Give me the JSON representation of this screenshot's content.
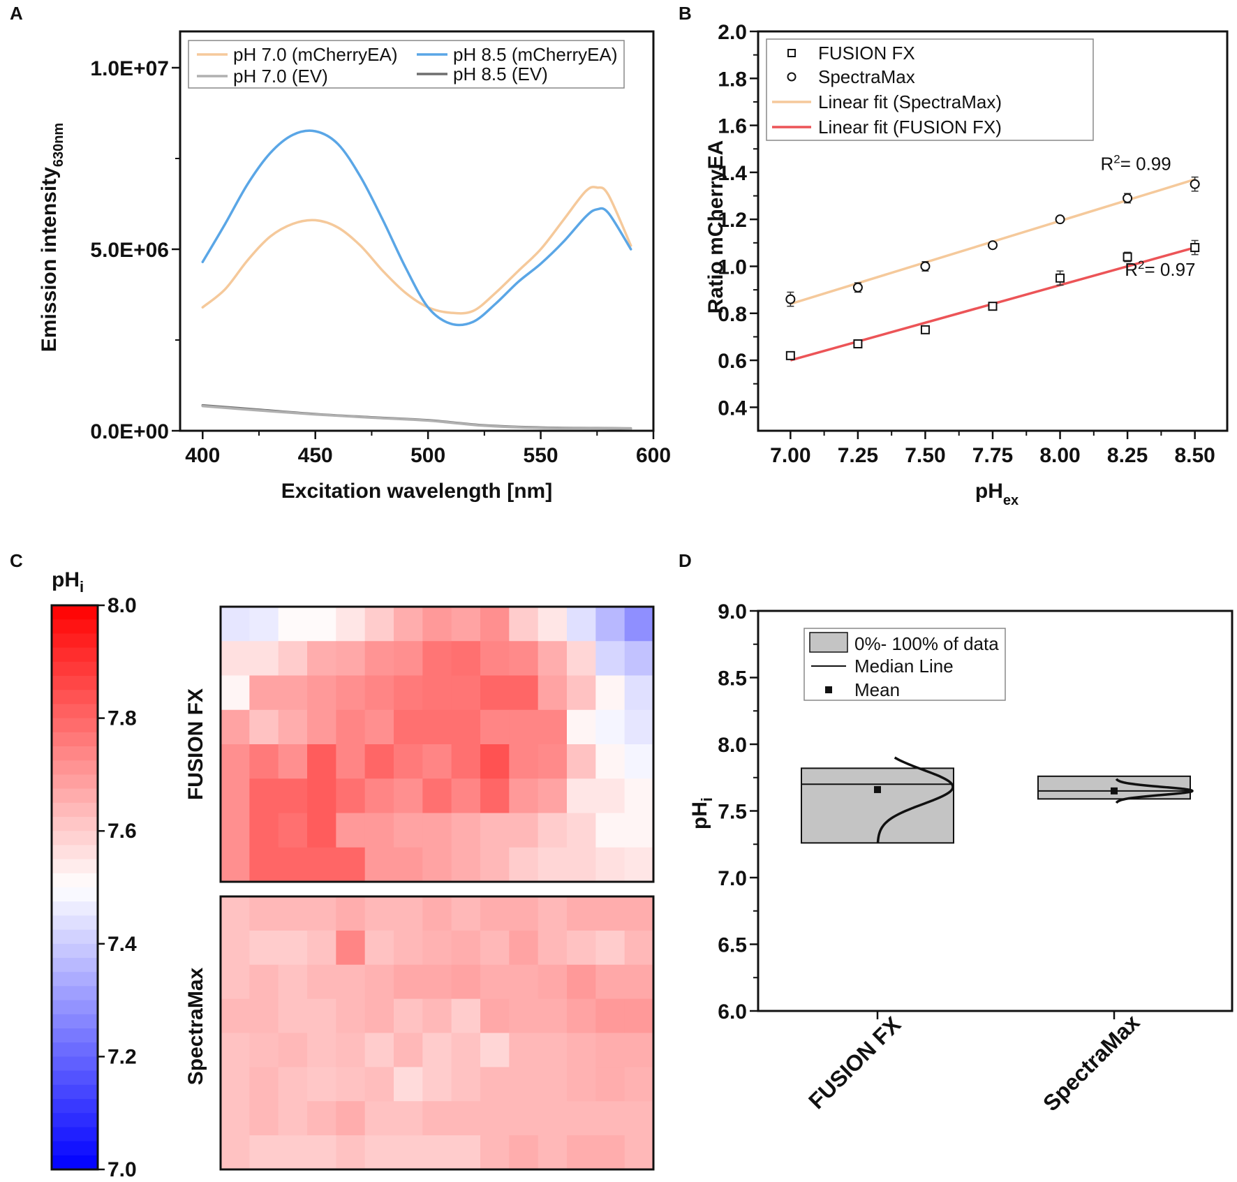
{
  "panel_labels": [
    "A",
    "B",
    "C",
    "D"
  ],
  "chart_data": [
    {
      "panel": "A",
      "type": "line",
      "xlabel": "Excitation wavelength [nm]",
      "ylabel_main": "Emission intensity",
      "ylabel_sub": "630nm",
      "xlim": [
        390,
        600
      ],
      "ylim": [
        0,
        11000000
      ],
      "xticks": [
        400,
        450,
        500,
        550,
        600
      ],
      "yticks": [
        0,
        5000000,
        10000000
      ],
      "ytick_labels": [
        "0.0E+00",
        "5.0E+06",
        "1.0E+07"
      ],
      "legend_position": "top-left",
      "series": [
        {
          "name": "pH 7.0 (mCherryEA)",
          "color": "#f5c99b",
          "x": [
            400,
            410,
            420,
            430,
            440,
            450,
            460,
            470,
            480,
            490,
            500,
            510,
            520,
            530,
            540,
            550,
            560,
            570,
            575,
            580,
            590
          ],
          "y": [
            3400000,
            3900000,
            4700000,
            5350000,
            5700000,
            5800000,
            5600000,
            5100000,
            4400000,
            3800000,
            3400000,
            3250000,
            3300000,
            3800000,
            4400000,
            5000000,
            5800000,
            6600000,
            6700000,
            6500000,
            5100000
          ]
        },
        {
          "name": "pH 8.5 (mCherryEA)",
          "color": "#5aa6e6",
          "x": [
            400,
            410,
            420,
            430,
            440,
            450,
            460,
            470,
            480,
            490,
            500,
            510,
            520,
            530,
            540,
            550,
            560,
            570,
            575,
            580,
            590
          ],
          "y": [
            4650000,
            5700000,
            6800000,
            7650000,
            8150000,
            8250000,
            7900000,
            7000000,
            5800000,
            4500000,
            3400000,
            2950000,
            3000000,
            3500000,
            4100000,
            4600000,
            5200000,
            5900000,
            6100000,
            6000000,
            5000000
          ]
        },
        {
          "name": "pH 7.0 (EV)",
          "color": "#b0b0b0",
          "x": [
            400,
            425,
            450,
            475,
            500,
            525,
            550,
            575,
            590
          ],
          "y": [
            680000,
            560000,
            450000,
            360000,
            280000,
            140000,
            80000,
            70000,
            60000
          ]
        },
        {
          "name": "pH 8.5 (EV)",
          "color": "#6e6e6e",
          "x": [
            400,
            425,
            450,
            475,
            500,
            525,
            550,
            575,
            590
          ],
          "y": [
            700000,
            580000,
            460000,
            370000,
            290000,
            150000,
            90000,
            75000,
            65000
          ]
        }
      ]
    },
    {
      "panel": "B",
      "type": "scatter",
      "xlabel_main": "pH",
      "xlabel_sub": "ex",
      "ylabel": "Ratio mCherryEA",
      "xlim": [
        6.88,
        8.62
      ],
      "ylim": [
        0.3,
        2.0
      ],
      "xticks": [
        7.0,
        7.25,
        7.5,
        7.75,
        8.0,
        8.25,
        8.5
      ],
      "xtick_labels": [
        "7.00",
        "7.25",
        "7.50",
        "7.75",
        "8.00",
        "8.25",
        "8.50"
      ],
      "yticks": [
        0.4,
        0.6,
        0.8,
        1.0,
        1.2,
        1.4,
        1.6,
        1.8,
        2.0
      ],
      "ytick_labels": [
        "0.4",
        "0.6",
        "0.8",
        "1.0",
        "1.2",
        "1.4",
        "1.6",
        "1.8",
        "2.0"
      ],
      "legend_position": "top-left",
      "series": [
        {
          "name": "FUSION FX",
          "marker": "square",
          "x": [
            7.0,
            7.25,
            7.5,
            7.75,
            8.0,
            8.25,
            8.5
          ],
          "y": [
            0.62,
            0.67,
            0.73,
            0.83,
            0.95,
            1.04,
            1.08
          ],
          "err": [
            0.01,
            0.01,
            0.01,
            0.01,
            0.03,
            0.02,
            0.03
          ]
        },
        {
          "name": "SpectraMax",
          "marker": "circle",
          "x": [
            7.0,
            7.25,
            7.5,
            7.75,
            8.0,
            8.25,
            8.5
          ],
          "y": [
            0.86,
            0.91,
            1.0,
            1.09,
            1.2,
            1.29,
            1.35
          ],
          "err": [
            0.03,
            0.02,
            0.02,
            0.01,
            0.01,
            0.02,
            0.03
          ]
        },
        {
          "name": "Linear fit (SpectraMax)",
          "type": "fit",
          "color": "#f5c99b",
          "x": [
            7.0,
            8.5
          ],
          "y": [
            0.84,
            1.37
          ]
        },
        {
          "name": "Linear fit (FUSION FX)",
          "type": "fit",
          "color": "#ec5457",
          "x": [
            7.0,
            8.5
          ],
          "y": [
            0.6,
            1.08
          ]
        }
      ],
      "annotations": [
        {
          "text": "R",
          "sup": "2",
          "rest": "= 0.99",
          "x": 8.15,
          "y": 1.41
        },
        {
          "text": "R",
          "sup": "2",
          "rest": "= 0.97",
          "x": 8.24,
          "y": 0.96
        }
      ]
    },
    {
      "panel": "C",
      "type": "heatmap",
      "colorbar_title_main": "pH",
      "colorbar_title_sub": "i",
      "colorbar_range": [
        7.0,
        8.0
      ],
      "colorbar_ticks": [
        7.0,
        7.2,
        7.4,
        7.6,
        7.8,
        8.0
      ],
      "colorbar_tick_labels": [
        "7.0",
        "7.2",
        "7.4",
        "7.6",
        "7.8",
        "8.0"
      ],
      "plates": [
        {
          "name": "FUSION FX",
          "rows": [
            [
              7.45,
              7.46,
              7.51,
              7.51,
              7.55,
              7.6,
              7.66,
              7.7,
              7.68,
              7.72,
              7.6,
              7.55,
              7.44,
              7.36,
              7.28
            ],
            [
              7.56,
              7.56,
              7.6,
              7.66,
              7.67,
              7.71,
              7.72,
              7.77,
              7.78,
              7.74,
              7.73,
              7.66,
              7.58,
              7.42,
              7.38
            ],
            [
              7.52,
              7.68,
              7.68,
              7.7,
              7.72,
              7.74,
              7.76,
              7.77,
              7.77,
              7.8,
              7.8,
              7.68,
              7.62,
              7.52,
              7.44
            ],
            [
              7.68,
              7.62,
              7.66,
              7.7,
              7.74,
              7.72,
              7.78,
              7.78,
              7.78,
              7.74,
              7.74,
              7.74,
              7.52,
              7.48,
              7.45
            ],
            [
              7.72,
              7.76,
              7.72,
              7.82,
              7.74,
              7.8,
              7.76,
              7.74,
              7.78,
              7.84,
              7.74,
              7.73,
              7.62,
              7.52,
              7.48
            ],
            [
              7.72,
              7.8,
              7.8,
              7.82,
              7.78,
              7.74,
              7.72,
              7.78,
              7.74,
              7.8,
              7.7,
              7.68,
              7.55,
              7.55,
              7.52
            ],
            [
              7.72,
              7.8,
              7.78,
              7.82,
              7.7,
              7.7,
              7.68,
              7.68,
              7.66,
              7.64,
              7.64,
              7.6,
              7.58,
              7.52,
              7.52
            ],
            [
              7.72,
              7.8,
              7.8,
              7.8,
              7.8,
              7.7,
              7.7,
              7.68,
              7.66,
              7.64,
              7.6,
              7.58,
              7.58,
              7.56,
              7.55
            ]
          ]
        },
        {
          "name": "SpectraMax",
          "rows": [
            [
              7.62,
              7.64,
              7.64,
              7.64,
              7.66,
              7.64,
              7.64,
              7.66,
              7.64,
              7.66,
              7.66,
              7.64,
              7.66,
              7.66,
              7.66
            ],
            [
              7.62,
              7.6,
              7.6,
              7.62,
              7.74,
              7.62,
              7.64,
              7.65,
              7.66,
              7.64,
              7.68,
              7.64,
              7.62,
              7.6,
              7.64
            ],
            [
              7.62,
              7.64,
              7.62,
              7.64,
              7.64,
              7.65,
              7.67,
              7.67,
              7.68,
              7.66,
              7.66,
              7.67,
              7.7,
              7.67,
              7.67
            ],
            [
              7.64,
              7.64,
              7.62,
              7.62,
              7.64,
              7.65,
              7.62,
              7.64,
              7.6,
              7.67,
              7.66,
              7.66,
              7.68,
              7.7,
              7.7
            ],
            [
              7.62,
              7.63,
              7.64,
              7.62,
              7.63,
              7.6,
              7.64,
              7.6,
              7.62,
              7.58,
              7.64,
              7.64,
              7.65,
              7.66,
              7.66
            ],
            [
              7.62,
              7.64,
              7.62,
              7.61,
              7.62,
              7.63,
              7.57,
              7.6,
              7.62,
              7.64,
              7.64,
              7.64,
              7.65,
              7.66,
              7.65
            ],
            [
              7.62,
              7.64,
              7.62,
              7.64,
              7.66,
              7.62,
              7.62,
              7.64,
              7.64,
              7.64,
              7.64,
              7.64,
              7.64,
              7.64,
              7.64
            ],
            [
              7.62,
              7.6,
              7.6,
              7.6,
              7.62,
              7.6,
              7.6,
              7.6,
              7.6,
              7.64,
              7.66,
              7.64,
              7.66,
              7.66,
              7.64
            ]
          ]
        }
      ]
    },
    {
      "panel": "D",
      "type": "box",
      "ylabel_main": "pH",
      "ylabel_sub": "i",
      "ylim": [
        6.0,
        9.0
      ],
      "yticks": [
        6.0,
        6.5,
        7.0,
        7.5,
        8.0,
        8.5,
        9.0
      ],
      "ytick_labels": [
        "6.0",
        "6.5",
        "7.0",
        "7.5",
        "8.0",
        "8.5",
        "9.0"
      ],
      "categories": [
        "FUSION FX",
        "SpectraMax"
      ],
      "boxes": [
        {
          "name": "FUSION FX",
          "min": 7.26,
          "max": 7.82,
          "median": 7.7,
          "mean": 7.66,
          "dist_low": 7.26,
          "dist_high": 7.9
        },
        {
          "name": "SpectraMax",
          "min": 7.59,
          "max": 7.76,
          "median": 7.65,
          "mean": 7.65,
          "dist_low": 7.56,
          "dist_high": 7.74
        }
      ],
      "legend_position": "top-left",
      "legend": [
        "0%- 100% of data",
        "Median Line",
        "Mean"
      ]
    }
  ]
}
